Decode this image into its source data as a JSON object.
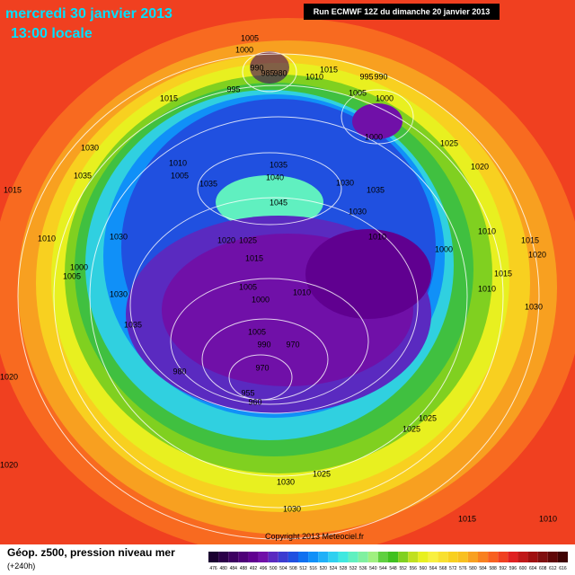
{
  "header": {
    "date": "mercredi 30 janvier 2013",
    "time": "13:00 locale",
    "run": "Run ECMWF 12Z du dimanche 20 janvier 2013"
  },
  "footer": {
    "title": "Géop. z500, pression niveau mer",
    "lead": "(+240h)",
    "copyright": "Copyright 2013 Meteociel.fr"
  },
  "scale": {
    "values": [
      476,
      480,
      484,
      488,
      492,
      496,
      500,
      504,
      508,
      512,
      516,
      520,
      524,
      528,
      532,
      536,
      540,
      544,
      548,
      552,
      556,
      560,
      564,
      568,
      572,
      576,
      580,
      584,
      588,
      592,
      596,
      600,
      604,
      608,
      612,
      616
    ],
    "colors": [
      "#1a0030",
      "#2b0048",
      "#3c0060",
      "#4e0078",
      "#600090",
      "#7010a8",
      "#5a2ac0",
      "#3c3cd0",
      "#2050e0",
      "#1070f0",
      "#1090f8",
      "#20b0f8",
      "#30d0f0",
      "#40e8e0",
      "#60f0c0",
      "#80f0a0",
      "#a0f080",
      "#60d040",
      "#40c020",
      "#80d020",
      "#c0e020",
      "#e8f020",
      "#f8f040",
      "#f8e030",
      "#f8d020",
      "#f8c020",
      "#f8a020",
      "#f88020",
      "#f86020",
      "#f04020",
      "#e02020",
      "#c01818",
      "#a01010",
      "#801010",
      "#600808",
      "#400404"
    ]
  },
  "isobars": [
    1005,
    1000,
    990,
    985,
    980,
    995,
    1010,
    1015,
    995,
    990,
    1005,
    1000,
    1000,
    1025,
    1020,
    1015,
    1015,
    1030,
    1035,
    1010,
    1005,
    1035,
    1035,
    1040,
    1045,
    1030,
    1035,
    1030,
    1010,
    1000,
    1005,
    1030,
    1030,
    1035,
    1020,
    1025,
    1015,
    1010,
    1000,
    1010,
    1005,
    1000,
    1010,
    1005,
    990,
    970,
    980,
    970,
    955,
    960,
    1015,
    1020,
    1015,
    1010,
    1030,
    1020,
    1020,
    1025,
    1025,
    1025,
    1030,
    1030,
    1015,
    1010
  ]
}
